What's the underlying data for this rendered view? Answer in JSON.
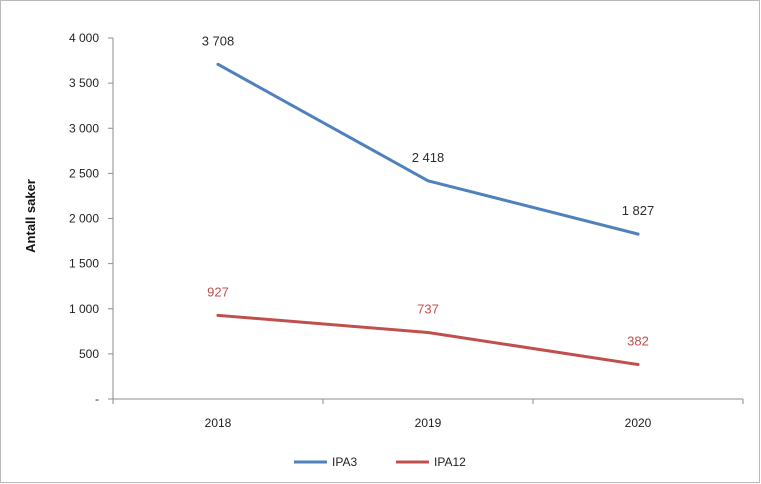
{
  "chart_data": {
    "type": "line",
    "title": "",
    "xlabel": "",
    "ylabel": "Antall saker",
    "categories": [
      "2018",
      "2019",
      "2020"
    ],
    "y_ticks": [
      "-",
      "500",
      "1 000",
      "1 500",
      "2 000",
      "2 500",
      "3 000",
      "3 500",
      "4 000"
    ],
    "ylim": [
      0,
      4000
    ],
    "grid": false,
    "legend_position": "bottom",
    "series": [
      {
        "name": "IPA3",
        "color": "#4f81bd",
        "values": [
          3708,
          2418,
          1827
        ],
        "labels": [
          "3 708",
          "2 418",
          "1 827"
        ]
      },
      {
        "name": "IPA12",
        "color": "#c0504d",
        "values": [
          927,
          737,
          382
        ],
        "labels": [
          "927",
          "737",
          "382"
        ]
      }
    ]
  }
}
